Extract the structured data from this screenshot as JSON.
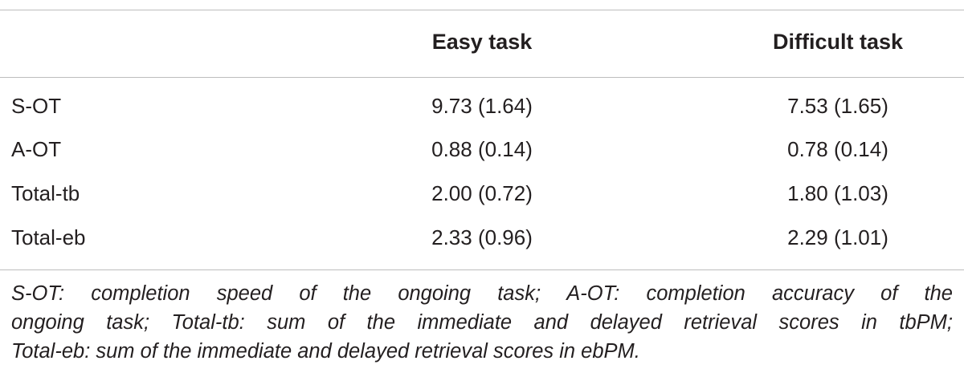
{
  "table": {
    "headers": [
      "",
      "Easy task",
      "Difficult task"
    ],
    "rows": [
      {
        "label": "S-OT",
        "easy": "9.73 (1.64)",
        "difficult": "7.53 (1.65)"
      },
      {
        "label": "A-OT",
        "easy": "0.88 (0.14)",
        "difficult": "0.78 (0.14)"
      },
      {
        "label": "Total-tb",
        "easy": "2.00 (0.72)",
        "difficult": "1.80 (1.03)"
      },
      {
        "label": "Total-eb",
        "easy": "2.33 (0.96)",
        "difficult": "2.29 (1.01)"
      }
    ]
  },
  "footnote": {
    "lines": [
      "S-OT: completion speed of the ongoing task; A-OT: completion accuracy of the",
      "ongoing task; Total-tb: sum of the immediate and delayed retrieval scores in tbPM;",
      "Total-eb: sum of the immediate and delayed retrieval scores in ebPM."
    ]
  }
}
